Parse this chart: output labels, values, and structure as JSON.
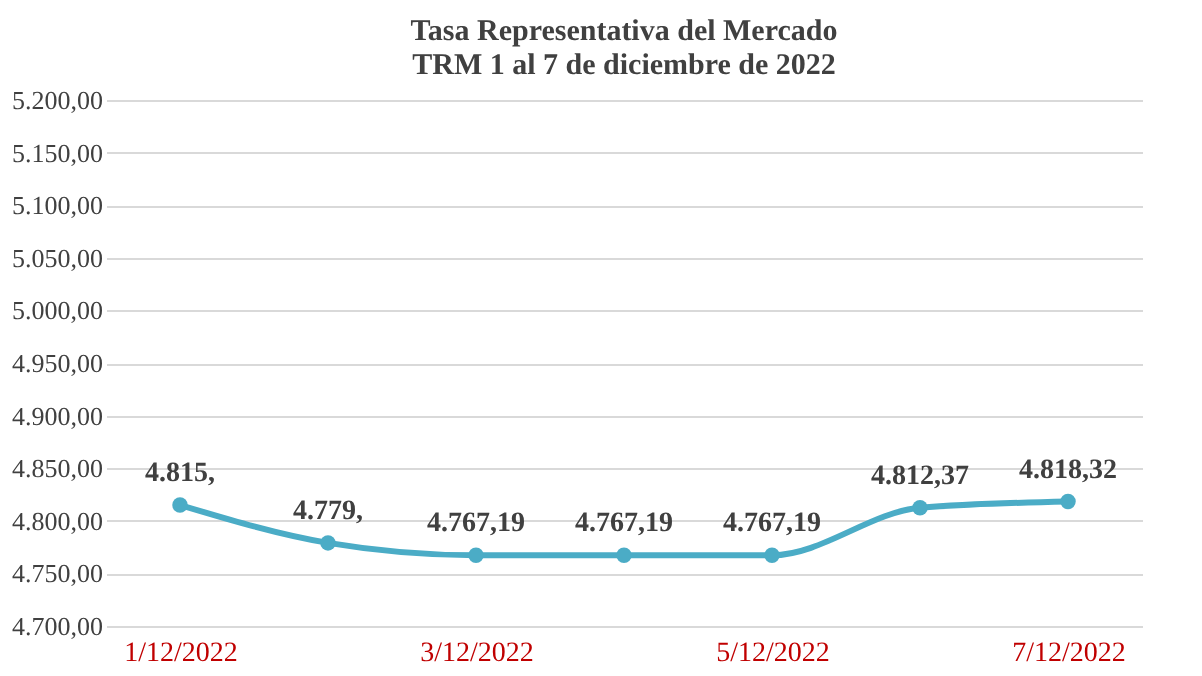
{
  "chart_data": {
    "type": "line",
    "title": [
      "Tasa Representativa del Mercado",
      "TRM  1 al 7 de diciembre de 2022"
    ],
    "categories": [
      "1/12/2022",
      null,
      "3/12/2022",
      null,
      "5/12/2022",
      null,
      "7/12/2022"
    ],
    "series": [
      {
        "color": "#4bacc6",
        "values": [
          4815,
          4779,
          4767.19,
          4767.19,
          4767.19,
          4812.37,
          4818.32
        ],
        "value_labels": [
          "4.815,",
          "4.779,",
          "4.767,19",
          "4.767,19",
          "4.767,19",
          "4.812,37",
          "4.818,32"
        ]
      }
    ],
    "ylim": [
      4700,
      5200
    ],
    "yticks": [
      {
        "value": 4700,
        "label": "4.700,00"
      },
      {
        "value": 4750,
        "label": "4.750,00"
      },
      {
        "value": 4800,
        "label": "4.800,00"
      },
      {
        "value": 4850,
        "label": "4.850,00"
      },
      {
        "value": 4900,
        "label": "4.900,00"
      },
      {
        "value": 4950,
        "label": "4.950,00"
      },
      {
        "value": 5000,
        "label": "5.000,00"
      },
      {
        "value": 5050,
        "label": "5.050,00"
      },
      {
        "value": 5100,
        "label": "5.100,00"
      },
      {
        "value": 5150,
        "label": "5.150,00"
      },
      {
        "value": 5200,
        "label": "5.200,00"
      }
    ],
    "grid": "y",
    "marker": "circle",
    "line_style": "solid"
  }
}
